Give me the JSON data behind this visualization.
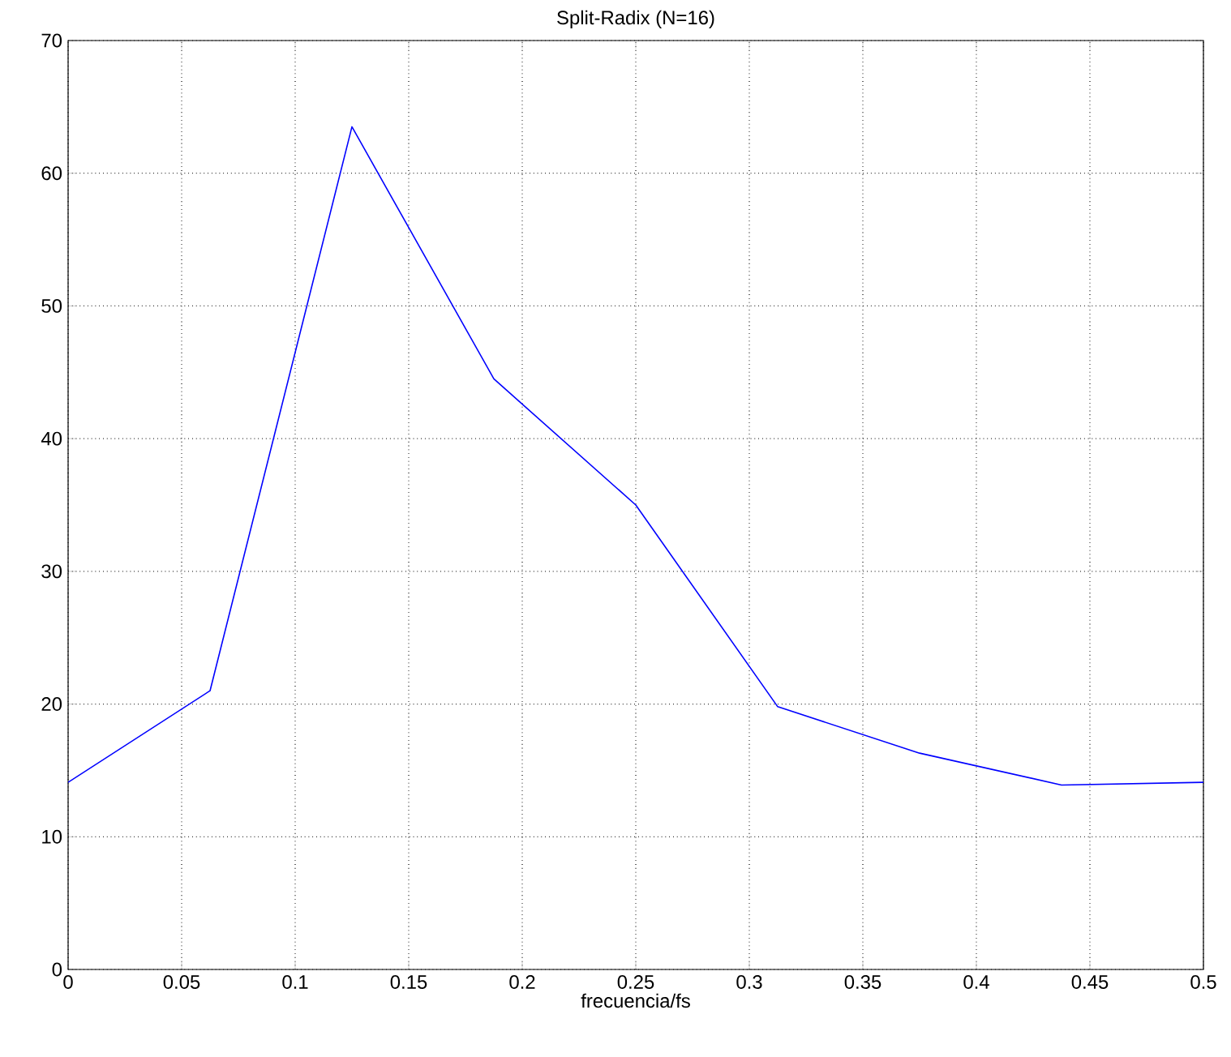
{
  "chart_data": {
    "type": "line",
    "title": "Split-Radix (N=16)",
    "xlabel": "frecuencia/fs",
    "x": [
      0,
      0.0625,
      0.125,
      0.1875,
      0.25,
      0.3125,
      0.375,
      0.4375,
      0.5
    ],
    "series": [
      {
        "color": "#0000ff",
        "values": [
          14.1,
          21,
          63.5,
          44.5,
          35,
          19.8,
          16.3,
          13.9,
          14.1
        ]
      }
    ],
    "xlim": [
      0,
      0.5
    ],
    "ylim": [
      0,
      70
    ],
    "xticks": [
      0,
      0.05,
      0.1,
      0.15,
      0.2,
      0.25,
      0.3,
      0.35,
      0.4,
      0.45,
      0.5
    ],
    "yticks": [
      0,
      10,
      20,
      30,
      40,
      50,
      60,
      70
    ],
    "grid": true
  }
}
